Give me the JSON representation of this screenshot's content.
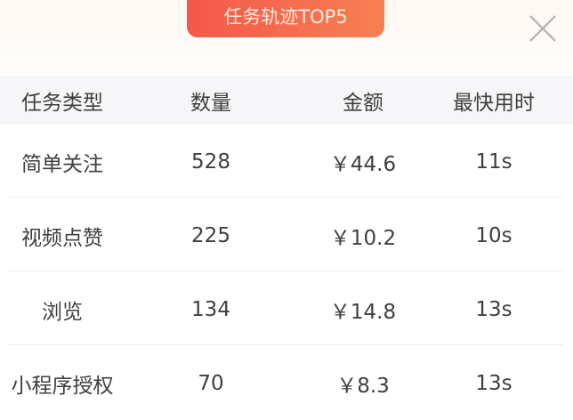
{
  "title": "任务轨迹TOP5",
  "close_icon": "close-icon",
  "headers": [
    "任务类型",
    "数量",
    "金额",
    "最快用时"
  ],
  "rows": [
    {
      "type": "简单关注",
      "count": "528",
      "amount": "￥44.6",
      "time": "11s"
    },
    {
      "type": "视频点赞",
      "count": "225",
      "amount": "￥10.2",
      "time": "10s"
    },
    {
      "type": "浏览",
      "count": "134",
      "amount": "￥14.8",
      "time": "13s"
    },
    {
      "type": "小程序授权",
      "count": "70",
      "amount": "￥8.3",
      "time": "13s"
    }
  ],
  "colors": {
    "badge_start": "#f4584a",
    "badge_end": "#f78052",
    "header_bg": "#f6f6f8"
  }
}
